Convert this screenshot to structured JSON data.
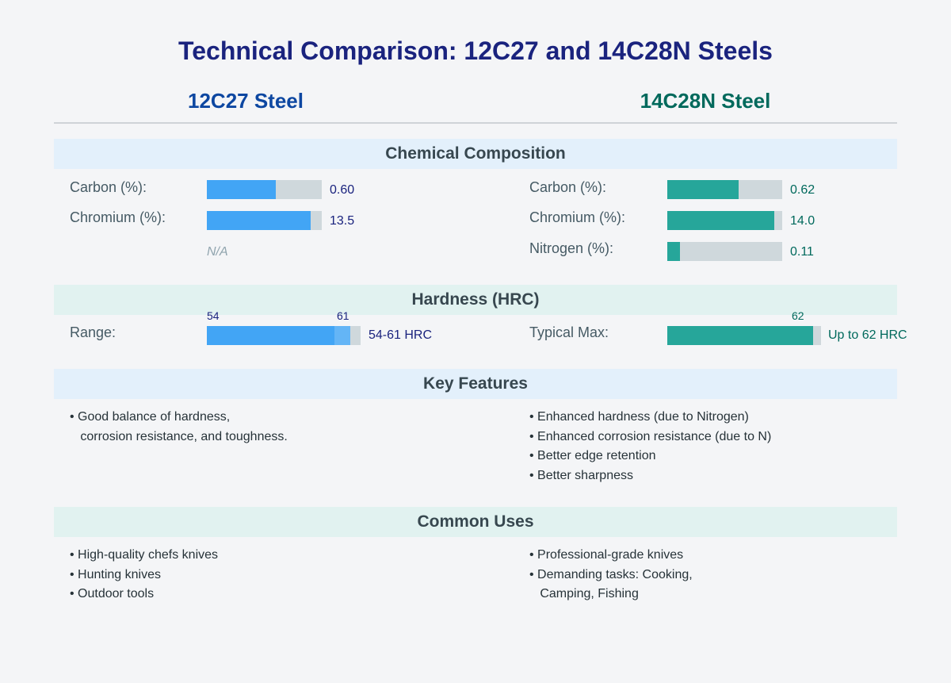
{
  "title": "Technical Comparison: 12C27 and 14C28N Steels",
  "left": {
    "name": "12C27 Steel",
    "color": "#0d47a1",
    "bar_color": "#42a5f5"
  },
  "right": {
    "name": "14C28N Steel",
    "color": "#00695c",
    "bar_color": "#26a69a"
  },
  "sections": {
    "composition": "Chemical Composition",
    "hardness": "Hardness (HRC)",
    "features": "Key Features",
    "uses": "Common Uses"
  },
  "composition": {
    "left": {
      "carbon": {
        "label": "Carbon (%):",
        "value": "0.60",
        "fraction": 0.6
      },
      "chromium": {
        "label": "Chromium (%):",
        "value": "13.5",
        "fraction": 0.9
      },
      "nitrogen_na": "N/A"
    },
    "right": {
      "carbon": {
        "label": "Carbon (%):",
        "value": "0.62",
        "fraction": 0.62
      },
      "chromium": {
        "label": "Chromium (%):",
        "value": "14.0",
        "fraction": 0.93
      },
      "nitrogen": {
        "label": "Nitrogen (%):",
        "value": "0.11",
        "fraction": 0.11
      }
    }
  },
  "hardness": {
    "left": {
      "label": "Range:",
      "min_tick": "54",
      "max_tick": "61",
      "text": "54-61 HRC",
      "min": 54,
      "max": 61
    },
    "right": {
      "label": "Typical Max:",
      "max_tick": "62",
      "text": "Up to 62 HRC",
      "max": 62
    }
  },
  "features": {
    "left": [
      "• Good balance of hardness,",
      "   corrosion resistance, and toughness."
    ],
    "right": [
      "• Enhanced hardness (due to Nitrogen)",
      "• Enhanced corrosion resistance (due to N)",
      "• Better edge retention",
      "• Better sharpness"
    ]
  },
  "uses": {
    "left": [
      "• High-quality chefs knives",
      "• Hunting knives",
      "• Outdoor tools"
    ],
    "right": [
      "• Professional-grade knives",
      "• Demanding tasks: Cooking,",
      "   Camping, Fishing"
    ]
  }
}
